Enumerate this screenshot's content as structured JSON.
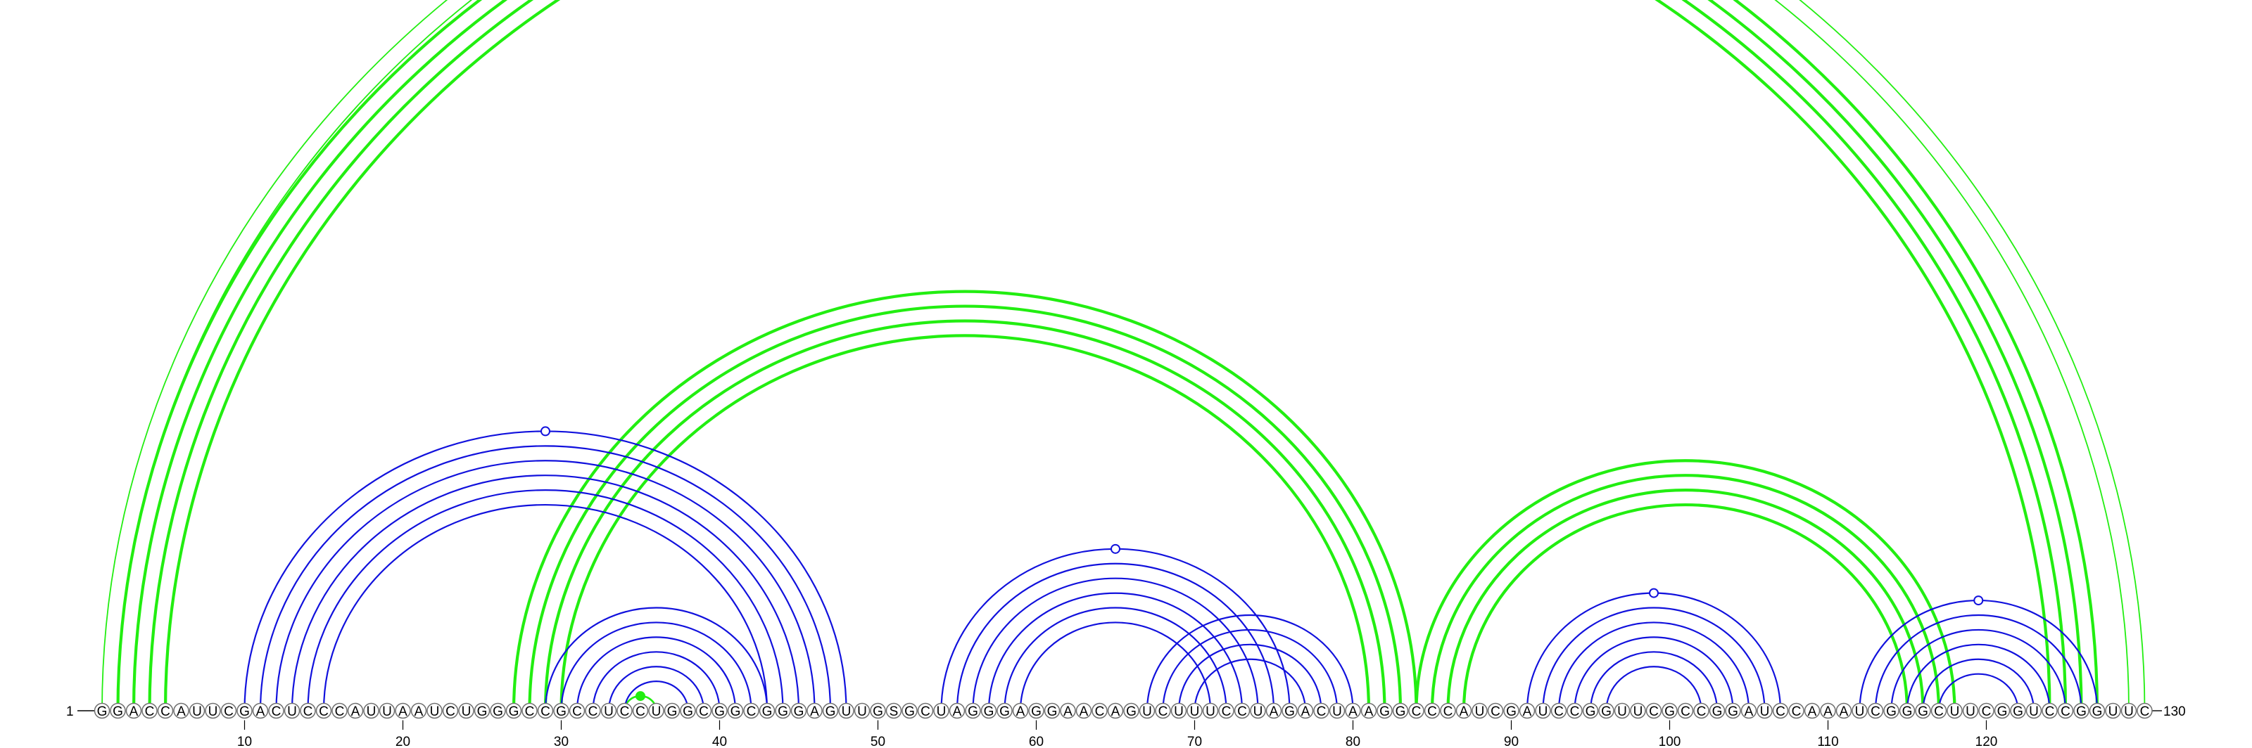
{
  "sequence": "GGACCAUUCGACUCCCAUUAAUCUGGGCCGCCUCCUGGCGGCGGGAGUUGSGCUAGGGAGGAACAGUCUUUCCUAGACUAAGGCCCAUCGAUCCGGUUCGCCGGAUCCAAAUCGGGCUUCGGUCCGGUUC",
  "start_label": "1",
  "end_label": "130",
  "ticks": [
    10,
    20,
    30,
    40,
    50,
    60,
    70,
    80,
    90,
    100,
    110,
    120
  ],
  "colors": {
    "green": "#22ee11",
    "blue": "#1111dd"
  },
  "arc_groups": [
    {
      "color": "green",
      "outer": [
        1,
        130
      ],
      "count": 2,
      "stroke": "thin",
      "marker": "open"
    },
    {
      "color": "green",
      "outer": [
        2,
        127
      ],
      "count": 4,
      "stroke": "thick"
    },
    {
      "color": "green",
      "outer": [
        27,
        84
      ],
      "count": 4,
      "stroke": "thick"
    },
    {
      "color": "green",
      "outer": [
        84,
        118
      ],
      "count": 4,
      "stroke": "thick"
    },
    {
      "color": "green",
      "outer": [
        34,
        36
      ],
      "count": 1,
      "stroke": "medium",
      "marker": "filled"
    },
    {
      "color": "blue",
      "outer": [
        10,
        48
      ],
      "count": 6,
      "stroke": "blue",
      "marker": "open"
    },
    {
      "color": "blue",
      "outer": [
        29,
        43
      ],
      "count": 6,
      "stroke": "blue"
    },
    {
      "color": "blue",
      "outer": [
        54,
        76
      ],
      "count": 6,
      "stroke": "blue",
      "marker": "open"
    },
    {
      "color": "blue",
      "outer": [
        67,
        80
      ],
      "count": 4,
      "stroke": "blue"
    },
    {
      "color": "blue",
      "outer": [
        91,
        107
      ],
      "count": 6,
      "stroke": "blue",
      "marker": "open"
    },
    {
      "color": "blue",
      "outer": [
        112,
        127
      ],
      "count": 6,
      "stroke": "blue",
      "marker": "open"
    }
  ]
}
